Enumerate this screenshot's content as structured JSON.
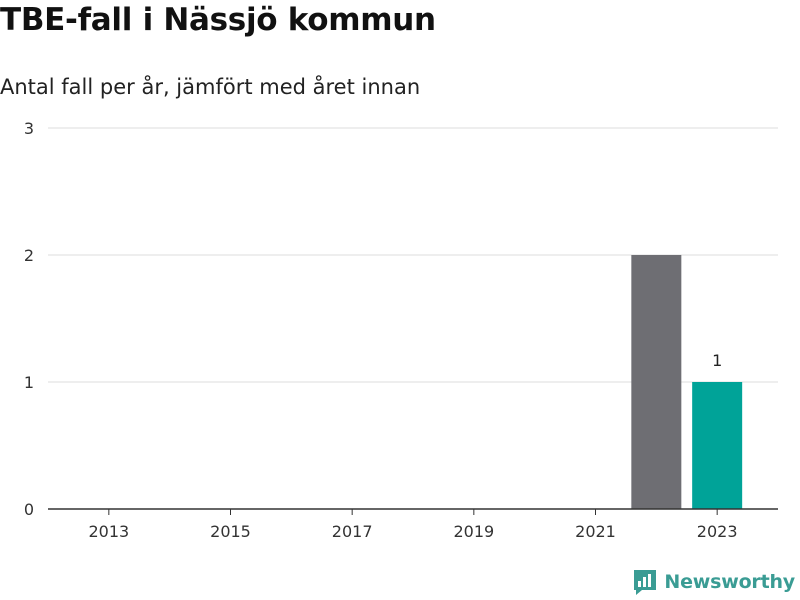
{
  "title": "TBE-fall i Nässjö kommun",
  "subtitle": "Antal fall per år, jämfört med året innan",
  "brand": {
    "name": "Newsworthy",
    "icon": "newsworthy-logo-icon",
    "color": "#3a9c94"
  },
  "colors": {
    "previous_year": "#6e6e73",
    "current_year": "#00a398",
    "gridline": "#dddddd",
    "axis": "#333333"
  },
  "chart_data": {
    "type": "bar",
    "title": "TBE-fall i Nässjö kommun",
    "subtitle": "Antal fall per år, jämfört med året innan",
    "xlabel": "",
    "ylabel": "",
    "x_range": [
      2012,
      2024
    ],
    "ylim": [
      0,
      3
    ],
    "yticks": [
      0,
      1,
      2,
      3
    ],
    "xticks": [
      2013,
      2015,
      2017,
      2019,
      2021,
      2023
    ],
    "grid": true,
    "legend": "none",
    "bars": [
      {
        "x": 2022,
        "value": 2,
        "color": "#6e6e73",
        "label": ""
      },
      {
        "x": 2023,
        "value": 1,
        "color": "#00a398",
        "label": "1"
      }
    ]
  }
}
